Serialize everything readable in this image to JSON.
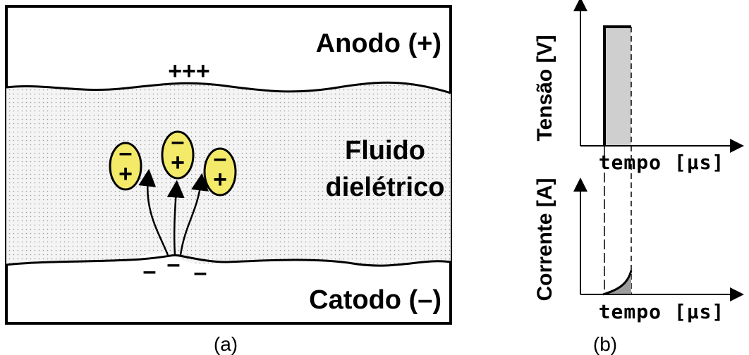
{
  "panel_a": {
    "anode_label": "Anodo (+)",
    "anode_charges": "+++",
    "fluid_label": [
      "Fluido",
      "dielétrico"
    ],
    "cathode_label": "Catodo (–)",
    "cathode_charges": [
      "–",
      "–",
      "–"
    ],
    "particles": [
      {
        "top": "–",
        "bottom": "+"
      },
      {
        "top": "–",
        "bottom": "+"
      },
      {
        "top": "–",
        "bottom": "+"
      }
    ],
    "caption": "(a)"
  },
  "panel_b": {
    "voltage_axis": "Tensão [V]",
    "voltage_time_axis": "tempo [µs]",
    "current_axis": "Corrente [A]",
    "current_time_axis": "tempo [µs]",
    "caption": "(b)"
  }
}
